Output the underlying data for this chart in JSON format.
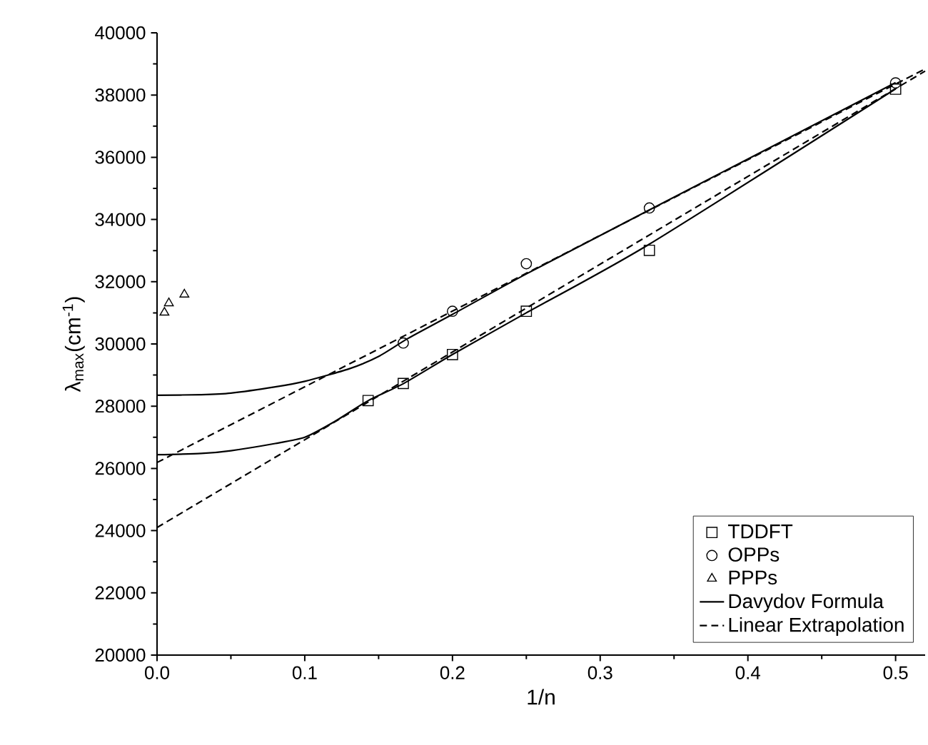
{
  "chart_data": {
    "type": "scatter",
    "xlabel": "1/n",
    "ylabel": "λ$_{max}$(cm$^{-1}$)",
    "xlim": [
      0,
      0.52
    ],
    "ylim": [
      20000,
      40000
    ],
    "xticks": [
      {
        "value": 0,
        "label": "0.0"
      },
      {
        "value": 0.1,
        "label": "0.1"
      },
      {
        "value": 0.2,
        "label": "0.2"
      },
      {
        "value": 0.3,
        "label": "0.3"
      },
      {
        "value": 0.4,
        "label": "0.4"
      },
      {
        "value": 0.5,
        "label": "0.5"
      }
    ],
    "yticks": [
      20000,
      22000,
      24000,
      26000,
      28000,
      30000,
      32000,
      34000,
      36000,
      38000,
      40000
    ],
    "grid": false,
    "legend": "bottom right",
    "series": [
      {
        "name": "TDDFT",
        "marker": "square",
        "color": "#000000",
        "x": [
          0.1429,
          0.1667,
          0.2,
          0.25,
          0.3333,
          0.5
        ],
        "values": [
          28180,
          28730,
          29660,
          31050,
          33010,
          38190
        ]
      },
      {
        "name": "OPPs",
        "marker": "circle",
        "color": "#000000",
        "x": [
          0.1667,
          0.2,
          0.25,
          0.3333,
          0.5
        ],
        "values": [
          30030,
          31050,
          32580,
          34370,
          38390
        ]
      },
      {
        "name": "PPPs",
        "marker": "triangle",
        "color": "#000000",
        "x": [
          0.005,
          0.008,
          0.0185
        ],
        "values": [
          31010,
          31310,
          31590
        ]
      },
      {
        "name": "Davydov Formula",
        "type": "line",
        "line_style": "solid",
        "color": "#000000",
        "x": [
          0,
          0.03,
          0.05,
          0.08,
          0.1,
          0.12,
          0.143,
          0.167,
          0.2,
          0.25,
          0.333,
          0.5
        ],
        "values": [
          26440,
          26480,
          26570,
          26800,
          27000,
          27500,
          28180,
          28730,
          29660,
          31000,
          33200,
          38200
        ]
      },
      {
        "type": "line",
        "line_style": "solid",
        "color": "#000000",
        "x": [
          0,
          0.03,
          0.05,
          0.08,
          0.1,
          0.13,
          0.15,
          0.17,
          0.2,
          0.25,
          0.333,
          0.5
        ],
        "values": [
          28350,
          28370,
          28420,
          28620,
          28800,
          29200,
          29600,
          30180,
          30950,
          32250,
          34300,
          38400
        ]
      },
      {
        "name": "Linear Extrapolation",
        "type": "line",
        "line_style": "dashed",
        "color": "#000000",
        "x": [
          0,
          0.52
        ],
        "values": [
          24100,
          38770
        ]
      },
      {
        "type": "line",
        "line_style": "dashed",
        "color": "#000000",
        "x": [
          0,
          0.52
        ],
        "values": [
          26190,
          38840
        ]
      }
    ]
  }
}
